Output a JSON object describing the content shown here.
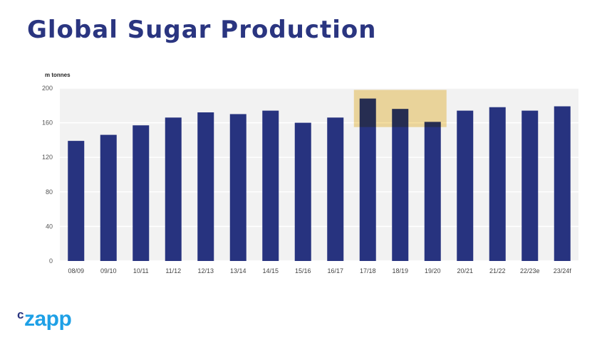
{
  "title": "Global Sugar Production",
  "logo": {
    "prefix": "c",
    "text": "zapp"
  },
  "chart_data": {
    "type": "bar",
    "title": "Global Sugar Production",
    "xlabel": "",
    "ylabel": "m tonnes",
    "ylim": [
      0,
      200
    ],
    "yticks": [
      0,
      40,
      80,
      120,
      160,
      200
    ],
    "grid": true,
    "categories": [
      "08/09",
      "09/10",
      "10/11",
      "11/12",
      "12/13",
      "13/14",
      "14/15",
      "15/16",
      "16/17",
      "17/18",
      "18/19",
      "19/20",
      "20/21",
      "21/22",
      "22/23e",
      "23/24f"
    ],
    "values": [
      139,
      146,
      157,
      166,
      172,
      170,
      174,
      160,
      166,
      188,
      176,
      161,
      174,
      178,
      174,
      179
    ],
    "highlight": {
      "from": "17/18",
      "to": "19/20",
      "ymin": 155,
      "ymax": 198
    },
    "colors": {
      "bar": "#27337f",
      "highlight": "#f2d27a",
      "plot_bg": "#f2f2f2"
    }
  }
}
